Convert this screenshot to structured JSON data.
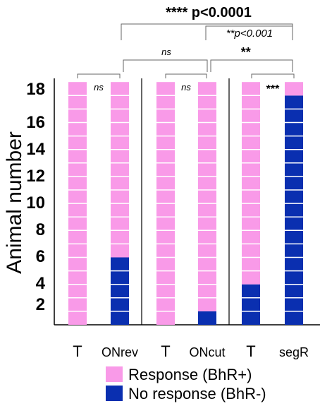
{
  "chart_data": {
    "type": "bar",
    "stacked": true,
    "ylabel": "Animal number",
    "yticks": [
      "2",
      "4",
      "6",
      "8",
      "10",
      "12",
      "14",
      "16",
      "18"
    ],
    "ylim": [
      0,
      18
    ],
    "categories": [
      "T",
      "ONrev",
      "T",
      "ONcut",
      "T",
      "segR"
    ],
    "series": [
      {
        "name": "No response (BhR-)",
        "color": "#0a2fb0",
        "values": [
          0,
          5,
          0,
          1,
          3,
          17
        ]
      },
      {
        "name": "Response (BhR+)",
        "color": "#f99ae8",
        "values": [
          18,
          13,
          18,
          17,
          15,
          1
        ]
      }
    ],
    "annotations": {
      "pair_ns_1": "ns",
      "pair_ns_2": "ns",
      "pair_sig_3": "***",
      "onrev_oncut": "ns",
      "oncut_segr": "**",
      "oncut_segr_p": "**p<0.001",
      "onrev_segr": "**** p<0.0001"
    }
  }
}
